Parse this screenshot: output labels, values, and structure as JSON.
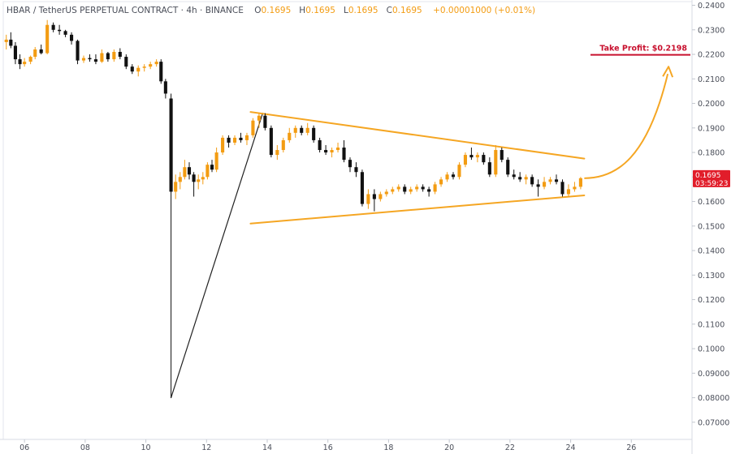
{
  "header": {
    "symbol": "HBAR / TetherUS PERPETUAL CONTRACT",
    "interval": "4h",
    "exchange": "BINANCE",
    "open_label": "O",
    "open": "0.1695",
    "high_label": "H",
    "high": "0.1695",
    "low_label": "L",
    "low": "0.1695",
    "close_label": "C",
    "close": "0.1695",
    "change": "+0.00001000 (+0.01%)"
  },
  "colors": {
    "up": "#f39c12",
    "down": "#111111",
    "trendline": "#f5a623",
    "take_profit": "#c8102e",
    "arrow": "#f5a623",
    "pole": "#222222"
  },
  "take_profit": {
    "label": "Take Profit: $0.2198",
    "price": 0.2198
  },
  "last_price": {
    "price_label": "0.1695",
    "timer": "03:59:23",
    "price": 0.1695
  },
  "chart_data": {
    "type": "candlestick",
    "title": "HBAR / TetherUS PERPETUAL CONTRACT · 4h · BINANCE",
    "x_unit": "day of month",
    "xlim": [
      5.3,
      28.0
    ],
    "ylim": [
      0.063,
      0.2415
    ],
    "x_ticks": [
      {
        "x": 6,
        "label": "06"
      },
      {
        "x": 8,
        "label": "08"
      },
      {
        "x": 10,
        "label": "10"
      },
      {
        "x": 12,
        "label": "12"
      },
      {
        "x": 14,
        "label": "14"
      },
      {
        "x": 16,
        "label": "16"
      },
      {
        "x": 18,
        "label": "18"
      },
      {
        "x": 20,
        "label": "20"
      },
      {
        "x": 22,
        "label": "22"
      },
      {
        "x": 24,
        "label": "24"
      },
      {
        "x": 26,
        "label": "26"
      }
    ],
    "y_ticks": [
      "0.2400",
      "0.2300",
      "0.2200",
      "0.2100",
      "0.2000",
      "0.1900",
      "0.1800",
      "0.1700",
      "0.1600",
      "0.1500",
      "0.1400",
      "0.1300",
      "0.1200",
      "0.1100",
      "0.1000",
      "0.09000",
      "0.08000",
      "0.07000"
    ],
    "candles": [
      [
        5.4,
        0.225,
        0.228,
        0.222,
        0.226
      ],
      [
        5.55,
        0.226,
        0.229,
        0.2225,
        0.2235
      ],
      [
        5.7,
        0.2235,
        0.225,
        0.216,
        0.218
      ],
      [
        5.85,
        0.218,
        0.22,
        0.214,
        0.216
      ],
      [
        6.0,
        0.216,
        0.2185,
        0.215,
        0.217
      ],
      [
        6.2,
        0.217,
        0.2195,
        0.216,
        0.219
      ],
      [
        6.35,
        0.219,
        0.223,
        0.218,
        0.222
      ],
      [
        6.55,
        0.222,
        0.224,
        0.22,
        0.2205
      ],
      [
        6.75,
        0.2205,
        0.234,
        0.22,
        0.232
      ],
      [
        6.95,
        0.232,
        0.233,
        0.229,
        0.23
      ],
      [
        7.15,
        0.23,
        0.232,
        0.228,
        0.2295
      ],
      [
        7.35,
        0.2295,
        0.23,
        0.227,
        0.228
      ],
      [
        7.55,
        0.228,
        0.229,
        0.224,
        0.2255
      ],
      [
        7.75,
        0.2255,
        0.226,
        0.216,
        0.2175
      ],
      [
        7.95,
        0.2175,
        0.2195,
        0.2165,
        0.2185
      ],
      [
        8.15,
        0.2185,
        0.22,
        0.217,
        0.218
      ],
      [
        8.35,
        0.218,
        0.22,
        0.216,
        0.217
      ],
      [
        8.55,
        0.217,
        0.222,
        0.2165,
        0.2205
      ],
      [
        8.75,
        0.2205,
        0.221,
        0.217,
        0.218
      ],
      [
        8.95,
        0.218,
        0.222,
        0.217,
        0.221
      ],
      [
        9.15,
        0.221,
        0.2225,
        0.218,
        0.219
      ],
      [
        9.35,
        0.219,
        0.22,
        0.214,
        0.215
      ],
      [
        9.55,
        0.215,
        0.216,
        0.212,
        0.213
      ],
      [
        9.75,
        0.213,
        0.2155,
        0.211,
        0.2145
      ],
      [
        9.95,
        0.2145,
        0.216,
        0.213,
        0.215
      ],
      [
        10.15,
        0.215,
        0.217,
        0.214,
        0.216
      ],
      [
        10.35,
        0.216,
        0.218,
        0.215,
        0.217
      ],
      [
        10.5,
        0.217,
        0.218,
        0.208,
        0.209
      ],
      [
        10.65,
        0.209,
        0.21,
        0.202,
        0.204
      ],
      [
        10.83,
        0.202,
        0.204,
        0.08,
        0.164
      ],
      [
        10.98,
        0.164,
        0.171,
        0.161,
        0.168
      ],
      [
        11.13,
        0.168,
        0.172,
        0.165,
        0.17
      ],
      [
        11.28,
        0.17,
        0.177,
        0.169,
        0.174
      ],
      [
        11.43,
        0.174,
        0.176,
        0.169,
        0.171
      ],
      [
        11.58,
        0.171,
        0.172,
        0.162,
        0.168
      ],
      [
        11.73,
        0.168,
        0.171,
        0.165,
        0.169
      ],
      [
        11.88,
        0.169,
        0.172,
        0.167,
        0.17
      ],
      [
        12.03,
        0.17,
        0.176,
        0.169,
        0.175
      ],
      [
        12.18,
        0.175,
        0.177,
        0.172,
        0.173
      ],
      [
        12.33,
        0.173,
        0.182,
        0.172,
        0.18
      ],
      [
        12.53,
        0.18,
        0.187,
        0.179,
        0.186
      ],
      [
        12.73,
        0.186,
        0.187,
        0.182,
        0.184
      ],
      [
        12.93,
        0.184,
        0.187,
        0.183,
        0.186
      ],
      [
        13.13,
        0.186,
        0.188,
        0.184,
        0.185
      ],
      [
        13.33,
        0.185,
        0.188,
        0.183,
        0.187
      ],
      [
        13.53,
        0.187,
        0.194,
        0.186,
        0.193
      ],
      [
        13.73,
        0.193,
        0.196,
        0.19,
        0.195
      ],
      [
        13.93,
        0.195,
        0.196,
        0.189,
        0.19
      ],
      [
        14.13,
        0.19,
        0.191,
        0.178,
        0.179
      ],
      [
        14.33,
        0.179,
        0.183,
        0.177,
        0.181
      ],
      [
        14.53,
        0.181,
        0.186,
        0.18,
        0.185
      ],
      [
        14.73,
        0.185,
        0.19,
        0.184,
        0.188
      ],
      [
        14.93,
        0.188,
        0.191,
        0.186,
        0.19
      ],
      [
        15.13,
        0.19,
        0.191,
        0.187,
        0.188
      ],
      [
        15.33,
        0.188,
        0.192,
        0.187,
        0.19
      ],
      [
        15.53,
        0.19,
        0.191,
        0.184,
        0.185
      ],
      [
        15.73,
        0.185,
        0.186,
        0.18,
        0.181
      ],
      [
        15.93,
        0.181,
        0.183,
        0.179,
        0.18
      ],
      [
        16.13,
        0.18,
        0.182,
        0.178,
        0.181
      ],
      [
        16.33,
        0.181,
        0.184,
        0.18,
        0.182
      ],
      [
        16.53,
        0.182,
        0.185,
        0.176,
        0.177
      ],
      [
        16.73,
        0.177,
        0.178,
        0.172,
        0.174
      ],
      [
        16.93,
        0.174,
        0.176,
        0.17,
        0.172
      ],
      [
        17.13,
        0.172,
        0.173,
        0.158,
        0.159
      ],
      [
        17.33,
        0.159,
        0.165,
        0.157,
        0.163
      ],
      [
        17.53,
        0.163,
        0.165,
        0.156,
        0.161
      ],
      [
        17.73,
        0.161,
        0.164,
        0.16,
        0.163
      ],
      [
        17.93,
        0.163,
        0.165,
        0.162,
        0.164
      ],
      [
        18.13,
        0.164,
        0.166,
        0.163,
        0.165
      ],
      [
        18.33,
        0.165,
        0.167,
        0.164,
        0.166
      ],
      [
        18.53,
        0.166,
        0.167,
        0.163,
        0.164
      ],
      [
        18.73,
        0.164,
        0.166,
        0.163,
        0.165
      ],
      [
        18.93,
        0.165,
        0.167,
        0.164,
        0.166
      ],
      [
        19.13,
        0.166,
        0.167,
        0.164,
        0.165
      ],
      [
        19.33,
        0.165,
        0.166,
        0.162,
        0.164
      ],
      [
        19.53,
        0.164,
        0.168,
        0.163,
        0.167
      ],
      [
        19.73,
        0.167,
        0.17,
        0.166,
        0.169
      ],
      [
        19.93,
        0.169,
        0.172,
        0.168,
        0.171
      ],
      [
        20.13,
        0.171,
        0.172,
        0.169,
        0.17
      ],
      [
        20.33,
        0.17,
        0.176,
        0.169,
        0.175
      ],
      [
        20.53,
        0.175,
        0.18,
        0.174,
        0.179
      ],
      [
        20.73,
        0.179,
        0.182,
        0.177,
        0.178
      ],
      [
        20.93,
        0.178,
        0.18,
        0.176,
        0.179
      ],
      [
        21.13,
        0.179,
        0.18,
        0.175,
        0.176
      ],
      [
        21.33,
        0.176,
        0.178,
        0.17,
        0.171
      ],
      [
        21.53,
        0.171,
        0.183,
        0.17,
        0.181
      ],
      [
        21.73,
        0.181,
        0.182,
        0.176,
        0.177
      ],
      [
        21.93,
        0.177,
        0.178,
        0.17,
        0.171
      ],
      [
        22.13,
        0.171,
        0.173,
        0.169,
        0.17
      ],
      [
        22.33,
        0.17,
        0.172,
        0.168,
        0.169
      ],
      [
        22.53,
        0.169,
        0.171,
        0.167,
        0.17
      ],
      [
        22.73,
        0.17,
        0.171,
        0.166,
        0.167
      ],
      [
        22.93,
        0.167,
        0.169,
        0.162,
        0.166
      ],
      [
        23.13,
        0.166,
        0.17,
        0.165,
        0.168
      ],
      [
        23.33,
        0.168,
        0.17,
        0.167,
        0.169
      ],
      [
        23.53,
        0.169,
        0.171,
        0.167,
        0.168
      ],
      [
        23.73,
        0.168,
        0.169,
        0.162,
        0.163
      ],
      [
        23.93,
        0.163,
        0.167,
        0.162,
        0.165
      ],
      [
        24.13,
        0.165,
        0.168,
        0.164,
        0.166
      ],
      [
        24.33,
        0.166,
        0.17,
        0.165,
        0.1695
      ]
    ],
    "candle_fields": [
      "x",
      "open",
      "high",
      "low",
      "close"
    ],
    "pattern": {
      "name": "symmetrical triangle",
      "flagpole": [
        [
          10.83,
          0.08
        ],
        [
          13.85,
          0.196
        ]
      ],
      "upper_trendline": [
        [
          13.45,
          0.1965
        ],
        [
          24.45,
          0.1775
        ]
      ],
      "lower_trendline": [
        [
          13.45,
          0.151
        ],
        [
          24.45,
          0.1625
        ]
      ],
      "breakout_arrow": [
        [
          24.45,
          0.1695
        ],
        [
          27.2,
          0.214
        ]
      ]
    }
  }
}
